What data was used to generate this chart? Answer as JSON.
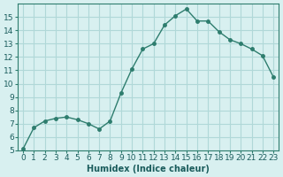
{
  "x": [
    0,
    1,
    2,
    3,
    4,
    5,
    6,
    7,
    8,
    9,
    10,
    11,
    12,
    13,
    14,
    15,
    16,
    17,
    18,
    19,
    20,
    21,
    22,
    23
  ],
  "y": [
    5.1,
    6.7,
    7.2,
    7.4,
    7.5,
    7.3,
    7.0,
    6.6,
    7.2,
    9.3,
    11.1,
    12.6,
    13.0,
    14.4,
    15.1,
    15.6,
    14.7,
    14.7,
    13.9,
    13.3,
    13.0,
    12.6,
    12.1,
    10.5
  ],
  "line_color": "#2e7d6e",
  "bg_color": "#d8f0f0",
  "grid_color": "#b0d8d8",
  "text_color": "#1a5c5c",
  "xlabel": "Humidex (Indice chaleur)",
  "ylim": [
    5,
    16
  ],
  "yticks": [
    5,
    6,
    7,
    8,
    9,
    10,
    11,
    12,
    13,
    14,
    15
  ],
  "xticks": [
    0,
    1,
    2,
    3,
    4,
    5,
    6,
    7,
    8,
    9,
    10,
    11,
    12,
    13,
    14,
    15,
    16,
    17,
    18,
    19,
    20,
    21,
    22,
    23
  ],
  "axis_fontsize": 7,
  "tick_fontsize": 6.5
}
